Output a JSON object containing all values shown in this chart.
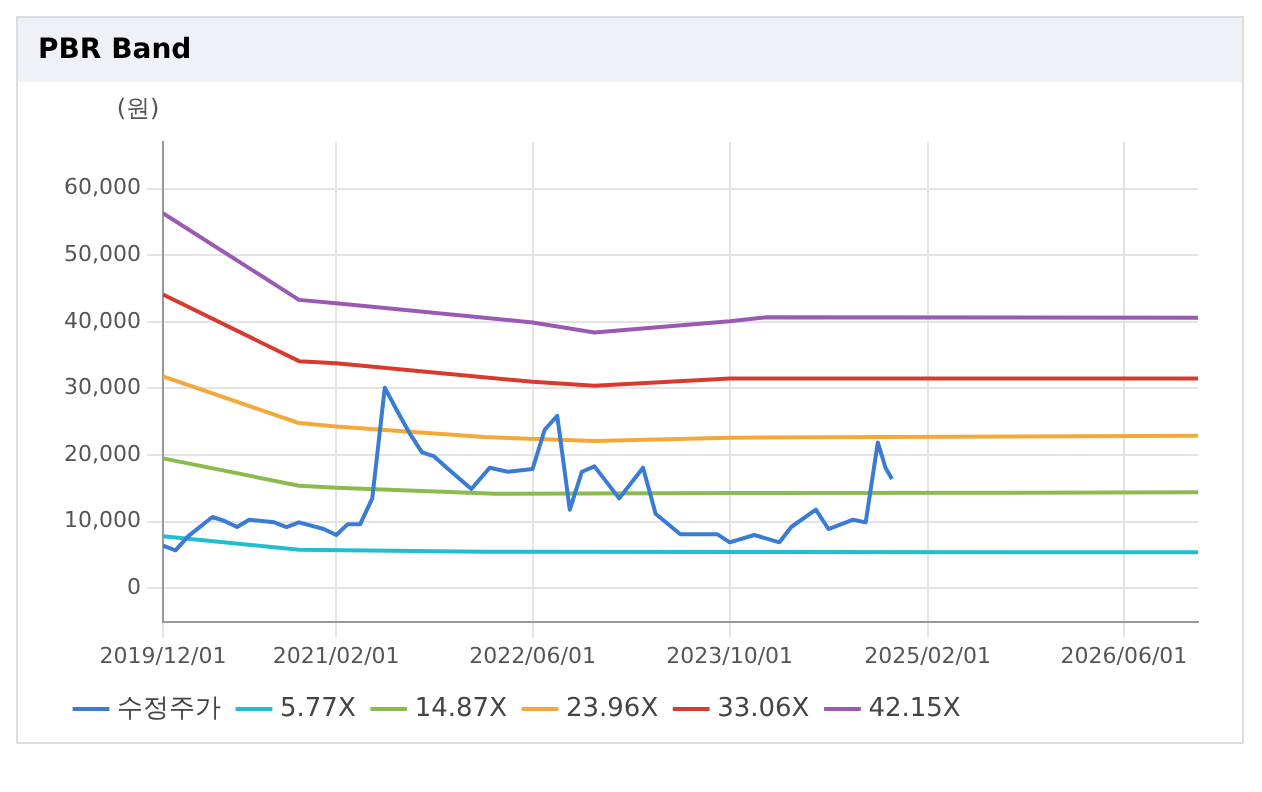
{
  "chart_data": {
    "type": "line",
    "title": "PBR Band",
    "ylabel": "(원)",
    "xlim": [
      "2019-12-01",
      "2026-12-01"
    ],
    "xticks": [
      {
        "value": "2019-12-01",
        "label": "2019/12/01"
      },
      {
        "value": "2021-02-01",
        "label": "2021/02/01"
      },
      {
        "value": "2022-06-01",
        "label": "2022/06/01"
      },
      {
        "value": "2023-10-01",
        "label": "2023/10/01"
      },
      {
        "value": "2025-02-01",
        "label": "2025/02/01"
      },
      {
        "value": "2026-06-01",
        "label": "2026/06/01"
      }
    ],
    "ylim": [
      -5000,
      67000
    ],
    "yticks": [
      {
        "value": 0,
        "label": "0"
      },
      {
        "value": 10000,
        "label": "10,000"
      },
      {
        "value": 20000,
        "label": "20,000"
      },
      {
        "value": 30000,
        "label": "30,000"
      },
      {
        "value": 40000,
        "label": "40,000"
      },
      {
        "value": 50000,
        "label": "50,000"
      },
      {
        "value": 60000,
        "label": "60,000"
      }
    ],
    "grid": true,
    "legend": "bottom",
    "marker": "none",
    "line_style": "solid",
    "series": [
      {
        "name": "수정주가",
        "color": "#3a7bd5",
        "x": [
          "2019-12-01",
          "2020-01-01",
          "2020-02-01",
          "2020-04-01",
          "2020-05-01",
          "2020-06-01",
          "2020-07-01",
          "2020-09-01",
          "2020-10-01",
          "2020-11-01",
          "2021-01-01",
          "2021-02-01",
          "2021-03-01",
          "2021-04-01",
          "2021-05-01",
          "2021-06-01",
          "2021-07-01",
          "2021-08-01",
          "2021-09-01",
          "2021-10-01",
          "2021-11-01",
          "2022-01-01",
          "2022-02-15",
          "2022-04-01",
          "2022-06-01",
          "2022-07-01",
          "2022-08-01",
          "2022-09-01",
          "2022-10-01",
          "2022-11-01",
          "2023-01-01",
          "2023-03-01",
          "2023-04-01",
          "2023-06-01",
          "2023-09-01",
          "2023-10-01",
          "2023-12-01",
          "2024-02-01",
          "2024-03-01",
          "2024-05-01",
          "2024-06-01",
          "2024-08-01",
          "2024-09-01",
          "2024-10-01",
          "2024-10-20",
          "2024-11-05"
        ],
        "values": [
          6400,
          5700,
          7800,
          10700,
          10100,
          9200,
          10300,
          9900,
          9200,
          9900,
          8900,
          8000,
          9600,
          9600,
          13500,
          30100,
          26700,
          23300,
          20400,
          19800,
          18100,
          14900,
          18100,
          17500,
          17900,
          23800,
          25900,
          11800,
          17500,
          18300,
          13500,
          18100,
          11200,
          8100,
          8100,
          6900,
          8000,
          6900,
          9200,
          11800,
          8900,
          10300,
          9900,
          21900,
          18100,
          16400
        ]
      },
      {
        "name": "5.77X",
        "color": "#1fbfcf",
        "x": [
          "2019-12-01",
          "2020-11-01",
          "2022-02-01",
          "2026-12-01"
        ],
        "values": [
          7800,
          5800,
          5500,
          5400
        ]
      },
      {
        "name": "14.87X",
        "color": "#8cbb4d",
        "x": [
          "2019-12-01",
          "2020-11-01",
          "2021-02-01",
          "2022-03-01",
          "2023-10-01",
          "2026-12-01"
        ],
        "values": [
          19500,
          15400,
          15100,
          14200,
          14300,
          14400
        ]
      },
      {
        "name": "23.96X",
        "color": "#f5a83a",
        "x": [
          "2019-12-01",
          "2020-11-01",
          "2021-02-01",
          "2022-02-01",
          "2022-11-01",
          "2023-10-01",
          "2026-12-01"
        ],
        "values": [
          31800,
          24800,
          24300,
          22700,
          22100,
          22600,
          22900
        ]
      },
      {
        "name": "33.06X",
        "color": "#d83a2e",
        "x": [
          "2019-12-01",
          "2020-11-01",
          "2021-02-01",
          "2022-06-01",
          "2022-11-01",
          "2023-10-01",
          "2026-12-01"
        ],
        "values": [
          44100,
          34100,
          33800,
          31000,
          30400,
          31500,
          31500
        ]
      },
      {
        "name": "42.15X",
        "color": "#9b59b6",
        "x": [
          "2019-12-01",
          "2020-11-01",
          "2021-02-01",
          "2022-06-01",
          "2022-11-01",
          "2023-10-01",
          "2024-01-01",
          "2026-12-01"
        ],
        "values": [
          56300,
          43300,
          42800,
          39900,
          38400,
          40100,
          40700,
          40600
        ]
      }
    ]
  }
}
